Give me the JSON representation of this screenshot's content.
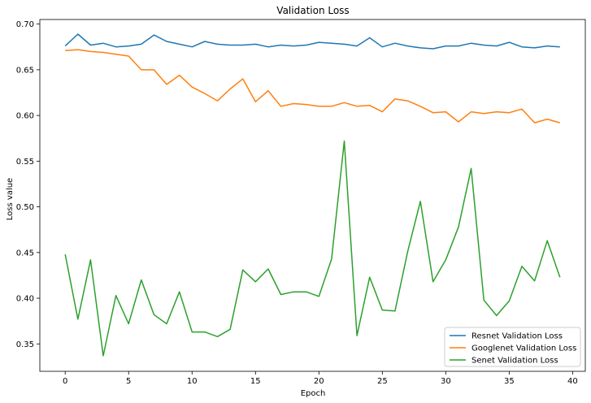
{
  "chart_data": {
    "type": "line",
    "title": "Validation Loss",
    "xlabel": "Epoch",
    "ylabel": "Loss value",
    "xlim": [
      -2,
      41
    ],
    "ylim": [
      0.32,
      0.705
    ],
    "xticks": [
      0,
      5,
      10,
      15,
      20,
      25,
      30,
      35,
      40
    ],
    "yticks": [
      0.35,
      0.4,
      0.45,
      0.5,
      0.55,
      0.6,
      0.65,
      0.7
    ],
    "ytick_labels": [
      "0.35",
      "0.40",
      "0.45",
      "0.50",
      "0.55",
      "0.60",
      "0.65",
      "0.70"
    ],
    "grid": false,
    "legend_position": "lower-right",
    "x": [
      0,
      1,
      2,
      3,
      4,
      5,
      6,
      7,
      8,
      9,
      10,
      11,
      12,
      13,
      14,
      15,
      16,
      17,
      18,
      19,
      20,
      21,
      22,
      23,
      24,
      25,
      26,
      27,
      28,
      29,
      30,
      31,
      32,
      33,
      34,
      35,
      36,
      37,
      38,
      39
    ],
    "series": [
      {
        "name": "Resnet Validation Loss",
        "color": "#1f77b4",
        "values": [
          0.676,
          0.689,
          0.677,
          0.679,
          0.675,
          0.676,
          0.678,
          0.688,
          0.681,
          0.678,
          0.675,
          0.681,
          0.678,
          0.677,
          0.677,
          0.678,
          0.675,
          0.677,
          0.676,
          0.677,
          0.68,
          0.679,
          0.678,
          0.676,
          0.685,
          0.675,
          0.679,
          0.676,
          0.674,
          0.673,
          0.676,
          0.676,
          0.679,
          0.677,
          0.676,
          0.68,
          0.675,
          0.674,
          0.676,
          0.675
        ]
      },
      {
        "name": "Googlenet Validation Loss",
        "color": "#ff7f0e",
        "values": [
          0.671,
          0.672,
          0.67,
          0.669,
          0.667,
          0.665,
          0.65,
          0.65,
          0.634,
          0.644,
          0.631,
          0.624,
          0.616,
          0.629,
          0.64,
          0.615,
          0.627,
          0.61,
          0.613,
          0.612,
          0.61,
          0.61,
          0.614,
          0.61,
          0.611,
          0.604,
          0.618,
          0.616,
          0.61,
          0.603,
          0.604,
          0.593,
          0.604,
          0.602,
          0.604,
          0.603,
          0.607,
          0.592,
          0.596,
          0.592
        ]
      },
      {
        "name": "Senet Validation Loss",
        "color": "#2ca02c",
        "values": [
          0.448,
          0.377,
          0.442,
          0.337,
          0.403,
          0.372,
          0.42,
          0.382,
          0.372,
          0.407,
          0.363,
          0.363,
          0.358,
          0.366,
          0.431,
          0.418,
          0.432,
          0.404,
          0.407,
          0.407,
          0.402,
          0.443,
          0.572,
          0.359,
          0.423,
          0.387,
          0.386,
          0.451,
          0.506,
          0.418,
          0.442,
          0.478,
          0.542,
          0.398,
          0.381,
          0.397,
          0.435,
          0.419,
          0.463,
          0.423
        ]
      }
    ]
  }
}
